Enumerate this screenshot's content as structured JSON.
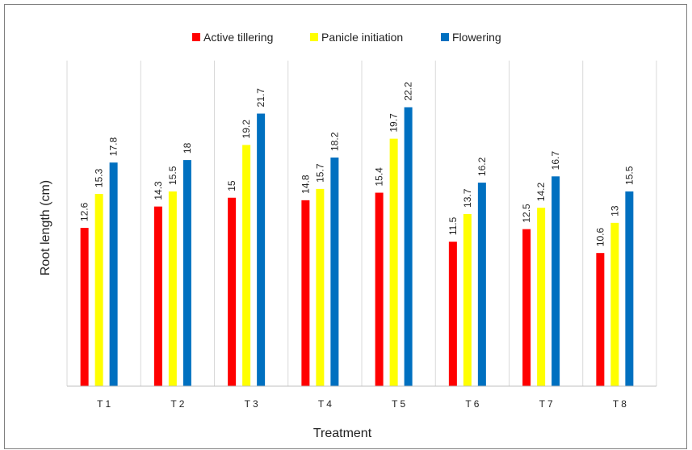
{
  "chart_data": {
    "type": "bar",
    "title": "",
    "xlabel": "Treatment",
    "ylabel": "Root length (cm)",
    "categories": [
      "T1",
      "T2",
      "T3",
      "T4",
      "T5",
      "T6",
      "T7",
      "T8"
    ],
    "series": [
      {
        "name": "Active tillering",
        "color": "#ff0000",
        "values": [
          12.6,
          14.3,
          15,
          14.8,
          15.4,
          11.5,
          12.5,
          10.6
        ]
      },
      {
        "name": "Panicle initiation",
        "color": "#ffff00",
        "values": [
          15.3,
          15.5,
          19.2,
          15.7,
          19.7,
          13.7,
          14.2,
          13
        ]
      },
      {
        "name": "Flowering",
        "color": "#0070c0",
        "values": [
          17.8,
          18,
          21.7,
          18.2,
          22.2,
          16.2,
          16.7,
          15.5
        ]
      }
    ],
    "data_labels": [
      [
        "12.6",
        "14.3",
        "15",
        "14.8",
        "15.4",
        "11.5",
        "12.5",
        "10.6"
      ],
      [
        "15.3",
        "15.5",
        "19.2",
        "15.7",
        "19.7",
        "13.7",
        "14.2",
        "13"
      ],
      [
        "17.8",
        "18",
        "21.7",
        "18.2",
        "22.2",
        "16.2",
        "16.7",
        "15.5"
      ]
    ],
    "tick_labels": [
      "T 1",
      "T 2",
      "T 3",
      "T 4",
      "T 5",
      "T 6",
      "T 7",
      "T 8"
    ],
    "ylim": [
      0,
      27
    ],
    "grid": "vertical category separators",
    "legend_position": "top-center",
    "y_axis_ticks_visible": false
  }
}
